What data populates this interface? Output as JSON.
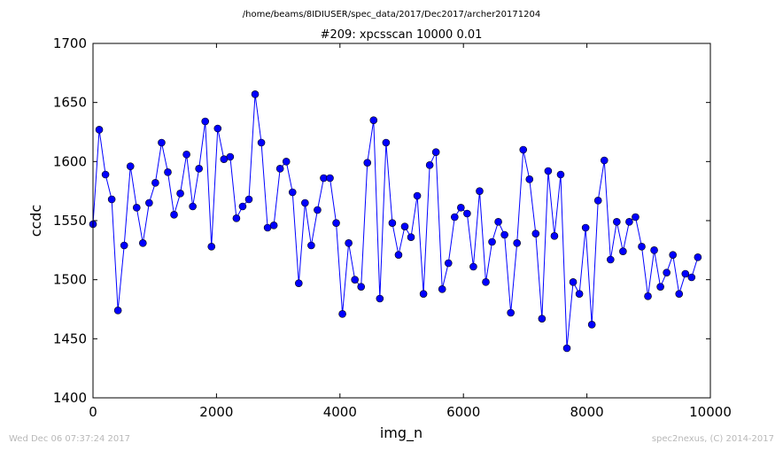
{
  "suptitle": "/home/beams/8IDIUSER/spec_data/2017/Dec2017/archer20171204",
  "footer_left": "Wed Dec 06 07:37:24 2017",
  "footer_right": "spec2nexus, (C) 2014-2017",
  "chart_data": {
    "type": "line",
    "title": "#209: xpcsscan 10000 0.01",
    "xlabel": "img_n",
    "ylabel": "ccdc",
    "xlim": [
      0,
      10000
    ],
    "ylim": [
      1400,
      1700
    ],
    "xticks": [
      0,
      2000,
      4000,
      6000,
      8000,
      10000
    ],
    "yticks": [
      1400,
      1450,
      1500,
      1550,
      1600,
      1650,
      1700
    ],
    "grid": false,
    "color": "#0000ff",
    "marker": "circle",
    "x_start": 0,
    "x_step": 101,
    "values": [
      1547,
      1627,
      1589,
      1568,
      1474,
      1529,
      1596,
      1561,
      1531,
      1565,
      1582,
      1616,
      1591,
      1555,
      1573,
      1606,
      1562,
      1594,
      1634,
      1528,
      1628,
      1602,
      1604,
      1552,
      1562,
      1568,
      1657,
      1616,
      1544,
      1546,
      1594,
      1600,
      1574,
      1497,
      1565,
      1529,
      1559,
      1586,
      1586,
      1548,
      1471,
      1531,
      1500,
      1494,
      1599,
      1635,
      1484,
      1616,
      1548,
      1521,
      1545,
      1536,
      1571,
      1488,
      1597,
      1608,
      1492,
      1514,
      1553,
      1561,
      1556,
      1511,
      1575,
      1498,
      1532,
      1549,
      1538,
      1472,
      1531,
      1610,
      1585,
      1539,
      1467,
      1592,
      1537,
      1589,
      1442,
      1498,
      1488,
      1544,
      1462,
      1567,
      1601,
      1517,
      1549,
      1524,
      1549,
      1553,
      1528,
      1486,
      1525,
      1494,
      1506,
      1521,
      1488,
      1505,
      1502,
      1519
    ]
  }
}
